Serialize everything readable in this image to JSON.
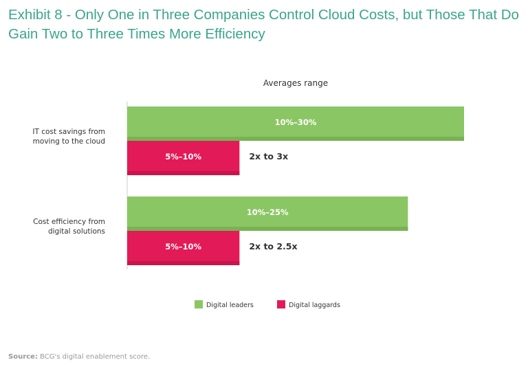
{
  "title": "Exhibit 8 - Only One in Three Companies Control Cloud Costs, but Those That Do Gain Two to Three Times More Efficiency",
  "source_label": "Source:",
  "source_text": "BCG's digital enablement score.",
  "chart_data": {
    "type": "bar",
    "orientation": "horizontal",
    "subtitle": "Averages range",
    "categories": [
      [
        "IT cost savings from",
        "moving to the cloud"
      ],
      [
        "Cost efficiency from",
        "digital solutions"
      ]
    ],
    "series": [
      {
        "name": "Digital leaders",
        "color": "#8bc664",
        "stripe": "#79b252",
        "ranges": [
          [
            10,
            30
          ],
          [
            10,
            25
          ]
        ],
        "labels": [
          "10%–30%",
          "10%–25%"
        ]
      },
      {
        "name": "Digital laggards",
        "color": "#e31a58",
        "stripe": "#c9154c",
        "ranges": [
          [
            5,
            10
          ],
          [
            5,
            10
          ]
        ],
        "labels": [
          "5%–10%",
          "5%–10%"
        ]
      }
    ],
    "annotations": [
      "2x to 3x",
      "2x to 2.5x"
    ],
    "xlim": [
      0,
      30
    ],
    "grid": false,
    "legend": "bottom"
  }
}
